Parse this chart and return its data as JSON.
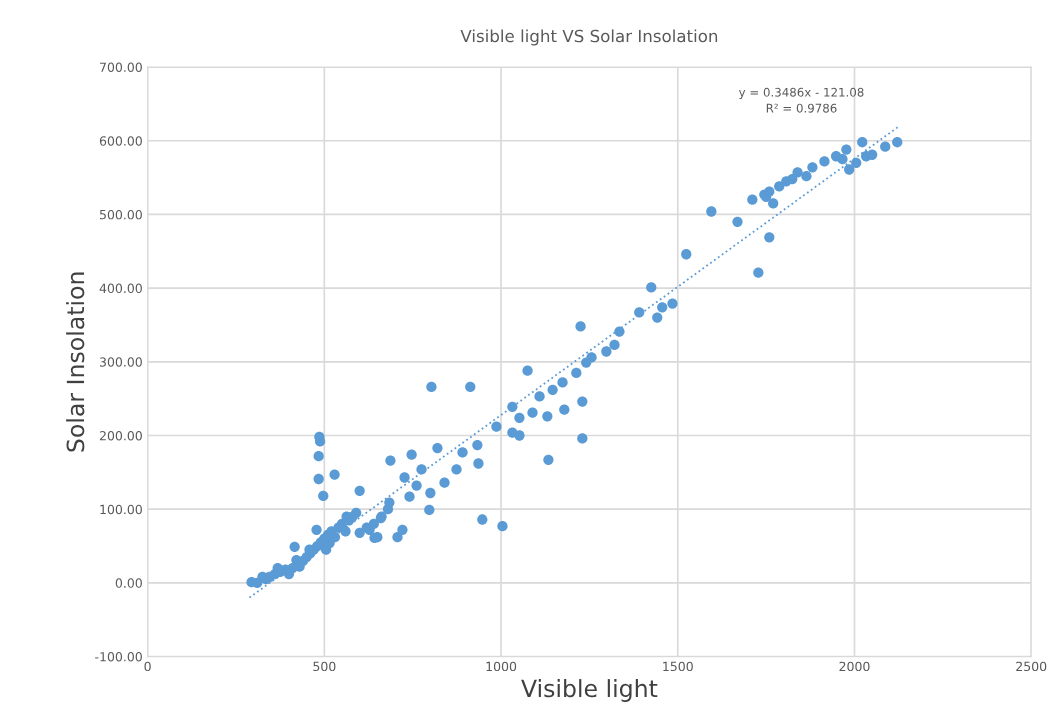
{
  "chart_data": {
    "type": "scatter",
    "title": "Visible light VS Solar Insolation",
    "xlabel": "Visible light",
    "ylabel": "Solar Insolation",
    "xlim": [
      0,
      2500
    ],
    "xticks": [
      0,
      500,
      1000,
      1500,
      2000,
      2500
    ],
    "ylim": [
      -100,
      700
    ],
    "yticks": [
      {
        "value": -100,
        "label": "-100.00"
      },
      {
        "value": 0,
        "label": "0.00"
      },
      {
        "value": 100,
        "label": "100.00"
      },
      {
        "value": 200,
        "label": "200.00"
      },
      {
        "value": 300,
        "label": "300.00"
      },
      {
        "value": 400,
        "label": "400.00"
      },
      {
        "value": 500,
        "label": "500.00"
      },
      {
        "value": 600,
        "label": "600.00"
      },
      {
        "value": 700,
        "label": "700.00"
      }
    ],
    "grid": true,
    "legend": false,
    "annotations": [
      "y = 0.3486x - 121.08",
      "R² = 0.9786"
    ],
    "series": [
      {
        "color": "#5b9bd5",
        "marker": "circle",
        "x": [
          294,
          310,
          325,
          335,
          345,
          360,
          368,
          375,
          390,
          400,
          410,
          416,
          421,
          430,
          440,
          450,
          458,
          460,
          470,
          478,
          480,
          490,
          500,
          505,
          510,
          515,
          520,
          530,
          540,
          550,
          560,
          563,
          570,
          580,
          590,
          600,
          620,
          628,
          640,
          642,
          650,
          660,
          662,
          680,
          684,
          486,
          488,
          484,
          484,
          497,
          529,
          600,
          687,
          747,
          803,
          913,
          820,
          797,
          800,
          721,
          707,
          947,
          1004,
          1075,
          1032,
          1032,
          1052,
          936,
          840,
          775,
          727,
          761,
          741,
          874,
          891,
          933,
          987,
          1524,
          1759,
          1728,
          1425,
          1225,
          1391,
          1442,
          1456,
          1485,
          1335,
          1321,
          1298,
          1256,
          1241,
          1213,
          1174,
          1146,
          1109,
          1089,
          1131,
          1179,
          1230,
          1230,
          1134,
          1052,
          1595,
          1669,
          1711,
          1770,
          1745,
          1759,
          1807,
          1839,
          1881,
          1915,
          1948,
          1977,
          1985,
          2022,
          2033,
          2050,
          2087,
          2121,
          2005,
          1966,
          1864,
          1824,
          1787,
          1750
        ],
        "values": [
          1,
          0,
          8,
          5,
          8,
          12,
          20,
          15,
          18,
          12,
          20,
          49,
          31,
          22,
          30,
          35,
          45,
          40,
          45,
          72,
          50,
          55,
          60,
          45,
          65,
          54,
          70,
          62,
          75,
          80,
          70,
          90,
          85,
          90,
          95,
          68,
          75,
          72,
          80,
          61,
          62,
          88,
          90,
          100,
          109,
          198,
          192,
          172,
          141,
          118,
          147,
          125,
          166,
          174,
          266,
          266,
          183,
          99,
          122,
          72,
          62,
          86,
          77,
          288,
          239,
          204,
          200,
          162,
          136,
          154,
          143,
          132,
          117,
          154,
          177,
          187,
          212,
          446,
          469,
          421,
          401,
          348,
          367,
          360,
          374,
          379,
          341,
          323,
          314,
          306,
          299,
          285,
          272,
          262,
          253,
          231,
          226,
          235,
          246,
          196,
          167,
          224,
          504,
          490,
          520,
          515,
          527,
          531,
          545,
          557,
          564,
          572,
          579,
          588,
          561,
          598,
          579,
          581,
          592,
          598,
          570,
          575,
          552,
          548,
          538,
          524
        ]
      },
      {
        "type": "line",
        "color": "#5b9bd5",
        "line_style": "dotted",
        "marker": "none",
        "x": [
          288,
          2127
        ],
        "values": [
          -20,
          620
        ]
      }
    ]
  }
}
